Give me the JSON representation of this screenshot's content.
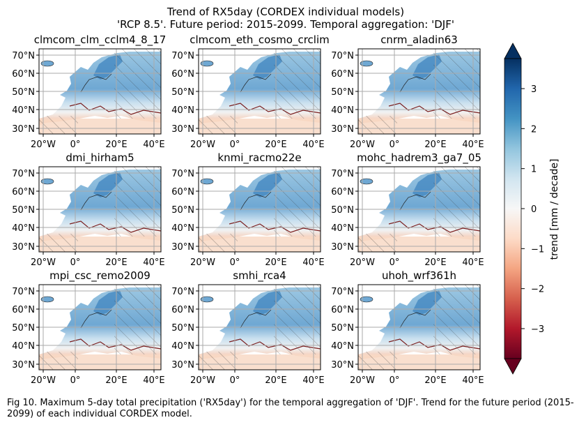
{
  "figure": {
    "title_line1": "Trend of RX5day (CORDEX individual models)",
    "title_line2": "'RCP 8.5'. Future period: 2015-2099. Temporal aggregation: 'DJF'",
    "caption": "Fig 10. Maximum 5-day total precipitation ('RX5day') for the temporal aggregation of 'DJF'. Trend for the future period (2015-2099) of each individual CORDEX model."
  },
  "panels": [
    {
      "title": "clmcom_clm_cclm4_8_17"
    },
    {
      "title": "clmcom_eth_cosmo_crclim"
    },
    {
      "title": "cnrm_aladin63"
    },
    {
      "title": "dmi_hirham5"
    },
    {
      "title": "knmi_racmo22e"
    },
    {
      "title": "mohc_hadrem3_ga7_05"
    },
    {
      "title": "mpi_csc_remo2009"
    },
    {
      "title": "smhi_rca4"
    },
    {
      "title": "uhoh_wrf361h"
    }
  ],
  "axes": {
    "lat_ticks": [
      "70°N",
      "60°N",
      "50°N",
      "40°N",
      "30°N"
    ],
    "lon_ticks": [
      "20°W",
      "0°",
      "20°E",
      "40°E"
    ]
  },
  "colorbar": {
    "label": "trend [mm / decade]",
    "ticks": [
      "3",
      "2",
      "1",
      "0",
      "−1",
      "−2",
      "−3"
    ],
    "colormap": "RdBu",
    "colors": [
      "#67001f",
      "#b2182b",
      "#d6604d",
      "#f4a582",
      "#fddbc7",
      "#f7f7f7",
      "#d1e5f0",
      "#92c5de",
      "#4393c3",
      "#2166ac",
      "#053061"
    ]
  }
}
